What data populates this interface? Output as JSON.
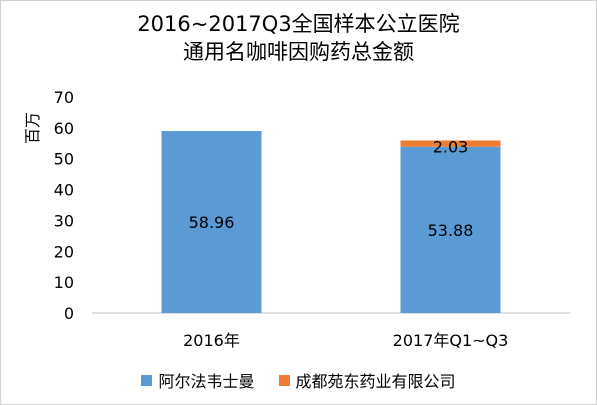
{
  "chart_data": {
    "type": "bar",
    "stacked": true,
    "title": [
      "2016~2017Q3全国样本公立医院",
      "通用名咖啡因购药总金额"
    ],
    "ylabel": "百万",
    "xlabel": "",
    "ylim": [
      0,
      70
    ],
    "yticks": [
      0,
      10,
      20,
      30,
      40,
      50,
      60,
      70
    ],
    "grid": false,
    "legend_position": "bottom",
    "categories": [
      "2016年",
      "2017年Q1~Q3"
    ],
    "series": [
      {
        "name": "阿尔法韦士曼",
        "color": "#5b9bd5",
        "values": [
          58.96,
          53.88
        ],
        "labels": [
          "58.96",
          "53.88"
        ]
      },
      {
        "name": "成都苑东药业有限公司",
        "color": "#ed7d31",
        "values": [
          0,
          2.03
        ],
        "labels": [
          "",
          "2.03"
        ]
      }
    ]
  }
}
